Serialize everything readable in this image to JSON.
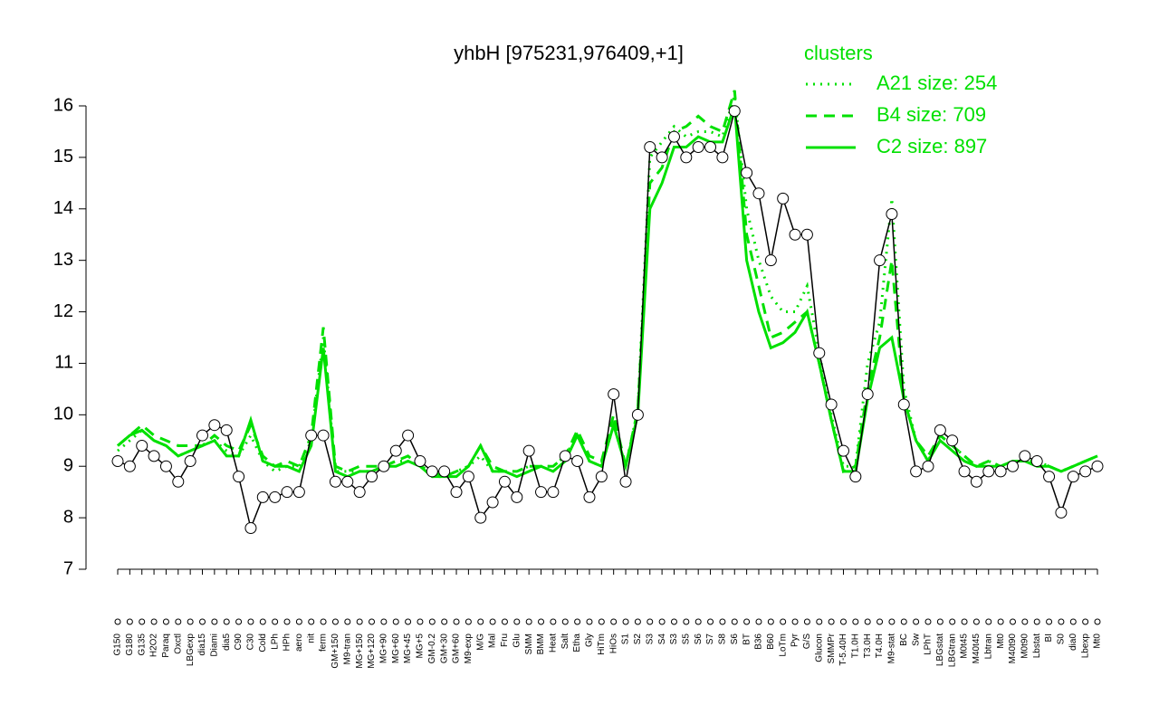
{
  "chart_data": {
    "type": "line",
    "title": "yhbH [975231,976409,+1]",
    "legend_title": "clusters",
    "categories": [
      "G150",
      "G180",
      "G135",
      "H2O2",
      "Paraq",
      "Oxctl",
      "LBGexp",
      "dia15",
      "Diami",
      "dia5",
      "C90",
      "C30",
      "Cold",
      "LPh",
      "HPh",
      "aero",
      "nit",
      "ferm",
      "GM+150",
      "M9-tran",
      "MG+150",
      "MG+120",
      "MG+90",
      "MG+60",
      "MG+45",
      "MG+5",
      "GM-0.2",
      "GM+30",
      "GM+60",
      "M9-exp",
      "M/G",
      "Mal",
      "Fru",
      "Glu",
      "SMM",
      "BMM",
      "Heat",
      "Salt",
      "Etha",
      "Gly",
      "HiTm",
      "HiOs",
      "S1",
      "S2",
      "S3",
      "S4",
      "S3",
      "S5",
      "S6",
      "S7",
      "S8",
      "S6",
      "BT",
      "B36",
      "B60",
      "LoTm",
      "Pyr",
      "G/S",
      "Glucon",
      "SMMPr",
      "T-5.40H",
      "T1.0H",
      "T3.0H",
      "T4.0H",
      "M9-stat",
      "BC",
      "Sw",
      "LPhT",
      "LBGstat",
      "LBGtran",
      "M0t45",
      "M40t45",
      "Lbtran",
      "Mt0",
      "M40t90",
      "M0t90",
      "Lbstat",
      "BI",
      "S0",
      "dia0",
      "Lbexp",
      "Mt0"
    ],
    "values": [
      9.1,
      9.0,
      9.4,
      9.2,
      9.0,
      8.7,
      9.1,
      9.6,
      9.8,
      9.7,
      8.8,
      7.8,
      8.4,
      8.4,
      8.5,
      8.5,
      9.6,
      9.6,
      8.7,
      8.7,
      8.5,
      8.8,
      9.0,
      9.3,
      9.6,
      9.1,
      8.9,
      8.9,
      8.5,
      8.8,
      8.0,
      8.3,
      8.7,
      8.4,
      9.3,
      8.5,
      8.5,
      9.2,
      9.1,
      8.4,
      8.8,
      10.4,
      8.7,
      10.0,
      15.2,
      15.0,
      15.4,
      15.0,
      15.2,
      15.2,
      15.0,
      15.9,
      14.7,
      14.3,
      13.0,
      14.2,
      13.5,
      13.5,
      11.2,
      10.2,
      9.3,
      8.8,
      10.4,
      13.0,
      13.9,
      10.2,
      8.9,
      9.0,
      9.7,
      9.5,
      8.9,
      8.7,
      8.9,
      8.9,
      9.0,
      9.2,
      9.1,
      8.8,
      8.1,
      8.8,
      8.9,
      9.0
    ],
    "color": "#000000",
    "series": [
      {
        "name": "A21 size: 254",
        "color": "#00e000",
        "style": "dotted",
        "values": [
          9.3,
          9.5,
          9.7,
          9.5,
          9.4,
          9.2,
          9.3,
          9.4,
          9.5,
          9.3,
          9.2,
          9.6,
          9.1,
          8.9,
          9.0,
          9.0,
          9.5,
          11.5,
          8.9,
          8.9,
          8.9,
          8.9,
          9.0,
          9.1,
          9.1,
          9.0,
          8.8,
          8.8,
          8.9,
          9.0,
          9.2,
          8.9,
          8.9,
          8.9,
          9.0,
          9.0,
          9.0,
          9.2,
          9.6,
          9.1,
          9.0,
          9.8,
          9.0,
          10.1,
          15.0,
          15.3,
          15.6,
          15.4,
          15.5,
          15.5,
          15.4,
          16.2,
          14.0,
          13.0,
          12.3,
          12.0,
          12.0,
          12.5,
          11.2,
          10.0,
          9.0,
          9.0,
          11.0,
          11.8,
          14.2,
          10.5,
          9.5,
          9.1,
          9.6,
          9.4,
          9.2,
          9.0,
          9.1,
          9.0,
          9.1,
          9.1,
          9.1,
          9.0,
          8.9,
          9.0,
          9.1,
          9.2
        ]
      },
      {
        "name": "B4 size: 709",
        "color": "#00e000",
        "style": "dashed",
        "values": [
          9.4,
          9.6,
          9.8,
          9.6,
          9.5,
          9.4,
          9.4,
          9.4,
          9.6,
          9.4,
          9.3,
          9.8,
          9.2,
          9.0,
          9.1,
          9.0,
          9.6,
          11.7,
          9.0,
          8.9,
          9.0,
          9.0,
          9.0,
          9.1,
          9.2,
          9.0,
          8.9,
          8.8,
          8.9,
          9.0,
          9.4,
          9.0,
          8.9,
          8.9,
          9.0,
          9.0,
          9.0,
          9.2,
          9.7,
          9.2,
          9.1,
          10.0,
          9.0,
          10.1,
          14.5,
          14.8,
          15.5,
          15.6,
          15.8,
          15.6,
          15.5,
          16.3,
          13.5,
          12.5,
          11.5,
          11.6,
          11.8,
          12.0,
          11.0,
          9.9,
          8.9,
          9.0,
          10.5,
          11.5,
          13.0,
          10.3,
          9.5,
          9.2,
          9.6,
          9.4,
          9.2,
          9.0,
          9.1,
          9.0,
          9.1,
          9.1,
          9.1,
          9.0,
          8.9,
          9.0,
          9.1,
          9.2
        ]
      },
      {
        "name": "C2 size: 897",
        "color": "#00e000",
        "style": "solid",
        "values": [
          9.4,
          9.6,
          9.7,
          9.5,
          9.4,
          9.2,
          9.3,
          9.4,
          9.5,
          9.2,
          9.2,
          9.9,
          9.1,
          9.0,
          9.0,
          8.9,
          9.4,
          11.3,
          8.9,
          8.8,
          8.9,
          8.9,
          9.0,
          9.0,
          9.1,
          9.0,
          8.8,
          8.8,
          8.8,
          9.0,
          9.4,
          8.9,
          8.9,
          8.8,
          8.9,
          9.0,
          8.9,
          9.1,
          9.6,
          9.1,
          9.0,
          9.8,
          9.0,
          10.0,
          14.0,
          14.5,
          15.2,
          15.2,
          15.4,
          15.3,
          15.3,
          16.0,
          13.0,
          12.0,
          11.3,
          11.4,
          11.6,
          12.0,
          11.0,
          9.9,
          8.9,
          8.9,
          10.3,
          11.3,
          11.5,
          10.3,
          9.5,
          9.1,
          9.5,
          9.3,
          9.1,
          9.0,
          9.0,
          9.0,
          9.1,
          9.1,
          9.0,
          9.0,
          8.9,
          9.0,
          9.1,
          9.2
        ]
      }
    ],
    "ylim": [
      7,
      16
    ],
    "yticks": [
      7,
      8,
      9,
      10,
      11,
      12,
      13,
      14,
      15,
      16
    ],
    "grid": false,
    "legend": "top-right"
  }
}
